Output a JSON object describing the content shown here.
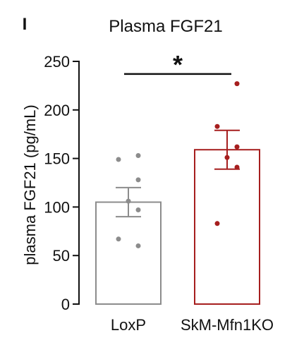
{
  "panel_label": "I",
  "chart_data": {
    "type": "bar",
    "title": "Plasma FGF21",
    "xlabel": "",
    "ylabel": "plasma FGF21 (pg/mL)",
    "ylim": [
      0,
      250
    ],
    "yticks": [
      0,
      50,
      100,
      150,
      200,
      250
    ],
    "categories": [
      "LoxP",
      "SkM-Mfn1KO"
    ],
    "values": [
      105,
      159
    ],
    "error": [
      15,
      20
    ],
    "points": [
      [
        153,
        149,
        128,
        106,
        97,
        67,
        60
      ],
      [
        227,
        183,
        162,
        151,
        141,
        83
      ]
    ],
    "colors": [
      "#8c8c8c",
      "#a61e1e"
    ],
    "significance": {
      "between": [
        0,
        1
      ],
      "label": "*"
    },
    "grid": false,
    "legend": "none"
  }
}
